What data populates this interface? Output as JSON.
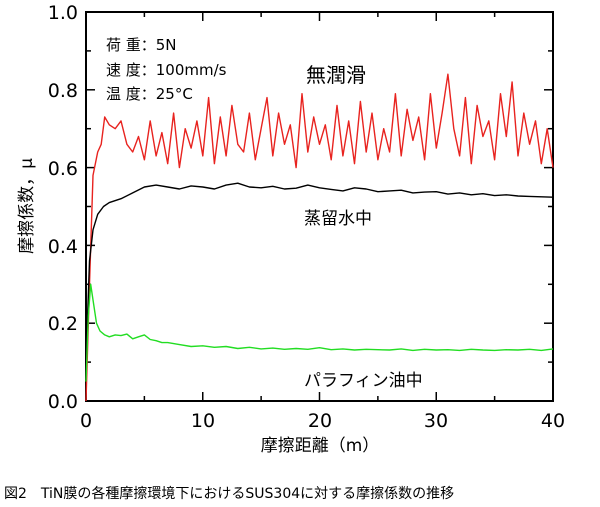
{
  "chart_data": {
    "type": "line",
    "caption": "図2　TiN膜の各種摩擦環境下におけるSUS304に対する摩擦係数の推移",
    "xlabel": "摩擦距離（m）",
    "ylabel": "摩擦係数，μ",
    "xlim": [
      0,
      40
    ],
    "ylim": [
      0,
      1.0
    ],
    "x_ticks": [
      "0",
      "10",
      "20",
      "30",
      "40"
    ],
    "y_ticks": [
      "0.0",
      "0.2",
      "0.4",
      "0.6",
      "0.8",
      "1.0"
    ],
    "conditions": [
      "荷 重：5N",
      "速 度：100mm/s",
      "温 度：25°C"
    ],
    "grid": false,
    "series": [
      {
        "name": "無潤滑",
        "color": "#e8231f",
        "x": [
          0,
          0.3,
          0.6,
          1.0,
          1.3,
          1.6,
          2.0,
          2.5,
          3.0,
          3.5,
          4.0,
          4.5,
          5.0,
          5.5,
          6.0,
          6.5,
          7.0,
          7.5,
          8.0,
          8.5,
          9.0,
          9.5,
          10.0,
          10.5,
          11.0,
          11.5,
          12.0,
          12.5,
          13.0,
          13.5,
          14.0,
          14.5,
          15.0,
          15.5,
          16.0,
          16.5,
          17.0,
          17.5,
          18.0,
          18.5,
          19.0,
          19.5,
          20.0,
          20.5,
          21.0,
          21.5,
          22.0,
          22.5,
          23.0,
          23.5,
          24.0,
          24.5,
          25.0,
          25.5,
          26.0,
          26.5,
          27.0,
          27.5,
          28.0,
          28.5,
          29.0,
          29.5,
          30.0,
          30.5,
          31.0,
          31.5,
          32.0,
          32.5,
          33.0,
          33.5,
          34.0,
          34.5,
          35.0,
          35.5,
          36.0,
          36.5,
          37.0,
          37.5,
          38.0,
          38.5,
          39.0,
          39.5,
          40.0
        ],
        "y": [
          0.0,
          0.3,
          0.58,
          0.64,
          0.66,
          0.73,
          0.71,
          0.7,
          0.72,
          0.66,
          0.64,
          0.68,
          0.62,
          0.72,
          0.63,
          0.69,
          0.61,
          0.74,
          0.6,
          0.7,
          0.65,
          0.72,
          0.63,
          0.78,
          0.61,
          0.73,
          0.63,
          0.76,
          0.66,
          0.64,
          0.74,
          0.62,
          0.7,
          0.78,
          0.63,
          0.74,
          0.66,
          0.71,
          0.6,
          0.79,
          0.64,
          0.73,
          0.66,
          0.71,
          0.62,
          0.76,
          0.63,
          0.72,
          0.61,
          0.77,
          0.64,
          0.74,
          0.62,
          0.7,
          0.64,
          0.79,
          0.63,
          0.75,
          0.67,
          0.73,
          0.62,
          0.79,
          0.65,
          0.74,
          0.84,
          0.7,
          0.63,
          0.78,
          0.61,
          0.76,
          0.68,
          0.72,
          0.62,
          0.79,
          0.68,
          0.82,
          0.63,
          0.74,
          0.66,
          0.72,
          0.61,
          0.7,
          0.6
        ]
      },
      {
        "name": "蒸留水中",
        "color": "#000000",
        "x": [
          0,
          0.3,
          0.6,
          1.0,
          1.5,
          2.0,
          3.0,
          4.0,
          5.0,
          6.0,
          7.0,
          8.0,
          9.0,
          10.0,
          11.0,
          12.0,
          13.0,
          14.0,
          15.0,
          16.0,
          17.0,
          18.0,
          19.0,
          20.0,
          21.0,
          22.0,
          23.0,
          24.0,
          25.0,
          26.0,
          27.0,
          28.0,
          29.0,
          30.0,
          31.0,
          32.0,
          33.0,
          34.0,
          35.0,
          36.0,
          37.0,
          38.0,
          39.0,
          40.0
        ],
        "y": [
          0.1,
          0.36,
          0.44,
          0.48,
          0.5,
          0.51,
          0.52,
          0.535,
          0.55,
          0.555,
          0.55,
          0.545,
          0.553,
          0.55,
          0.545,
          0.555,
          0.56,
          0.55,
          0.548,
          0.552,
          0.545,
          0.547,
          0.555,
          0.548,
          0.544,
          0.54,
          0.548,
          0.545,
          0.538,
          0.54,
          0.542,
          0.535,
          0.537,
          0.538,
          0.532,
          0.535,
          0.53,
          0.533,
          0.528,
          0.53,
          0.527,
          0.526,
          0.525,
          0.524
        ]
      },
      {
        "name": "パラフィン油中",
        "color": "#22dd22",
        "x": [
          0,
          0.2,
          0.4,
          0.6,
          0.9,
          1.2,
          1.6,
          2.0,
          2.5,
          3.0,
          3.5,
          4.0,
          4.5,
          5.0,
          5.5,
          6.0,
          6.5,
          7.0,
          8.0,
          9.0,
          10.0,
          11.0,
          12.0,
          13.0,
          14.0,
          15.0,
          16.0,
          17.0,
          18.0,
          19.0,
          20.0,
          21.0,
          22.0,
          23.0,
          24.0,
          25.0,
          26.0,
          27.0,
          28.0,
          29.0,
          30.0,
          31.0,
          32.0,
          33.0,
          34.0,
          35.0,
          36.0,
          37.0,
          38.0,
          39.0,
          40.0
        ],
        "y": [
          0.05,
          0.22,
          0.3,
          0.26,
          0.2,
          0.18,
          0.17,
          0.165,
          0.17,
          0.168,
          0.172,
          0.16,
          0.165,
          0.17,
          0.158,
          0.155,
          0.15,
          0.15,
          0.145,
          0.14,
          0.142,
          0.138,
          0.14,
          0.135,
          0.138,
          0.134,
          0.136,
          0.133,
          0.135,
          0.133,
          0.137,
          0.132,
          0.134,
          0.131,
          0.133,
          0.132,
          0.131,
          0.134,
          0.13,
          0.133,
          0.131,
          0.132,
          0.13,
          0.133,
          0.131,
          0.13,
          0.132,
          0.131,
          0.133,
          0.13,
          0.134
        ]
      }
    ]
  }
}
